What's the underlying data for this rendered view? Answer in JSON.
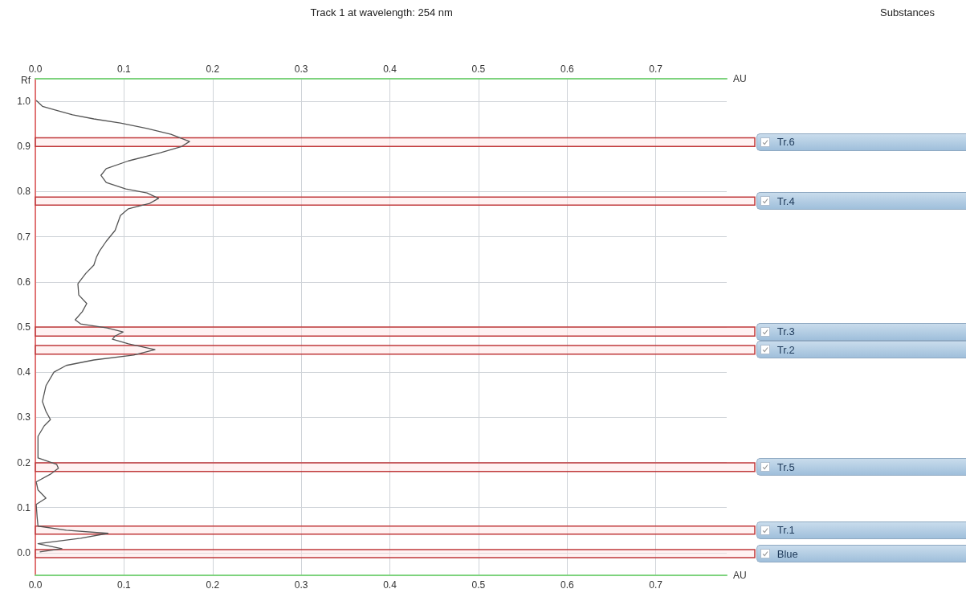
{
  "chart_data": {
    "type": "line",
    "title": "Track 1 at wavelength: 254 nm",
    "xlabel": "AU",
    "x2label": "AU",
    "ylabel": "Rf",
    "annotations": [
      "Substances"
    ],
    "xlim": [
      0,
      0.78
    ],
    "xticks": [
      {
        "value": 0,
        "label": "0.0"
      },
      0.1,
      0.2,
      0.3,
      0.4,
      0.5,
      0.6,
      0.7
    ],
    "x2lim": [
      0,
      0.78
    ],
    "x2ticks": [
      {
        "value": 0,
        "label": "0.0"
      },
      0.1,
      0.2,
      0.3,
      0.4,
      0.5,
      0.6,
      0.7
    ],
    "ylim": [
      -0.05,
      1.05
    ],
    "yticks": [
      {
        "value": 0,
        "label": "0.0"
      },
      0.1,
      0.2,
      0.3,
      0.4,
      0.5,
      0.6,
      0.7,
      0.8,
      0.9,
      {
        "value": 1,
        "label": "1.0"
      }
    ],
    "grid": true,
    "marker": "none",
    "line_style": "solid",
    "series": [
      {
        "color": "#555555",
        "x": [
          0.001,
          0.008,
          0.024,
          0.042,
          0.066,
          0.096,
          0.126,
          0.153,
          0.174,
          0.165,
          0.141,
          0.105,
          0.08,
          0.074,
          0.08,
          0.102,
          0.126,
          0.139,
          0.129,
          0.105,
          0.096,
          0.09,
          0.08,
          0.072,
          0.069,
          0.066,
          0.057,
          0.048,
          0.049,
          0.058,
          0.053,
          0.045,
          0.051,
          0.081,
          0.099,
          0.09,
          0.087,
          0.105,
          0.135,
          0.111,
          0.066,
          0.035,
          0.021,
          0.012,
          0.008,
          0.012,
          0.017,
          0.01,
          0.003,
          0.003,
          0.003,
          0.024,
          0.026,
          0.017,
          0.001,
          0.003,
          0.012,
          0.001,
          0.002,
          0.003,
          0.035,
          0.082,
          0.051,
          0.003,
          0.03,
          0.005
        ],
        "values": [
          1.002,
          0.989,
          0.98,
          0.97,
          0.961,
          0.952,
          0.94,
          0.927,
          0.911,
          0.9,
          0.886,
          0.868,
          0.851,
          0.836,
          0.82,
          0.806,
          0.797,
          0.785,
          0.774,
          0.762,
          0.747,
          0.714,
          0.69,
          0.667,
          0.655,
          0.637,
          0.619,
          0.596,
          0.571,
          0.552,
          0.534,
          0.516,
          0.507,
          0.498,
          0.489,
          0.48,
          0.473,
          0.463,
          0.45,
          0.438,
          0.427,
          0.415,
          0.4,
          0.37,
          0.335,
          0.313,
          0.295,
          0.281,
          0.258,
          0.228,
          0.21,
          0.196,
          0.187,
          0.174,
          0.157,
          0.139,
          0.121,
          0.107,
          0.08,
          0.059,
          0.05,
          0.043,
          0.032,
          0.02,
          0.009,
          0.002
        ]
      }
    ],
    "bands": [
      {
        "axis": "y",
        "from": 0.9,
        "to": 0.919,
        "label": "Tr.6",
        "color": "#c0393b"
      },
      {
        "axis": "y",
        "from": 0.77,
        "to": 0.788,
        "label": "Tr.4",
        "color": "#c0393b"
      },
      {
        "axis": "y",
        "from": 0.48,
        "to": 0.5,
        "label": "Tr.3",
        "color": "#c0393b"
      },
      {
        "axis": "y",
        "from": 0.44,
        "to": 0.459,
        "label": "Tr.2",
        "color": "#c0393b"
      },
      {
        "axis": "y",
        "from": 0.18,
        "to": 0.199,
        "label": "Tr.5",
        "color": "#c0393b"
      },
      {
        "axis": "y",
        "from": 0.041,
        "to": 0.059,
        "label": "Tr.1",
        "color": "#c0393b"
      },
      {
        "axis": "y",
        "from": -0.011,
        "to": 0.007,
        "label": "Blue",
        "color": "#c0393b"
      }
    ]
  }
}
